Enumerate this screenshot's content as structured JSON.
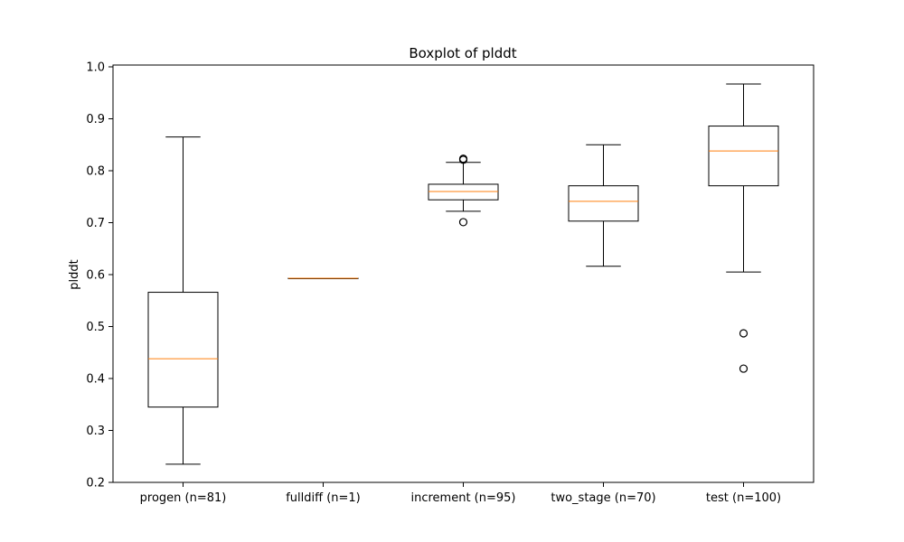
{
  "chart_data": {
    "type": "boxplot",
    "title": "Boxplot of plddt",
    "xlabel": "",
    "ylabel": "plddt",
    "ylim": [
      0.2,
      1.0
    ],
    "yticks": [
      "0.2",
      "0.3",
      "0.4",
      "0.5",
      "0.6",
      "0.7",
      "0.8",
      "0.9",
      "1.0"
    ],
    "grid": false,
    "legend": "none",
    "colors": {
      "box": "#000000",
      "median": "#ff7f0e"
    },
    "categories": [
      "progen (n=81)",
      "fulldiff (n=1)",
      "increment (n=95)",
      "two_stage (n=70)",
      "test (n=100)"
    ],
    "boxes": [
      {
        "whisker_low": 0.235,
        "q1": 0.345,
        "median": 0.438,
        "q3": 0.566,
        "whisker_high": 0.865,
        "outliers": []
      },
      {
        "whisker_low": 0.593,
        "q1": 0.593,
        "median": 0.593,
        "q3": 0.593,
        "whisker_high": 0.593,
        "outliers": []
      },
      {
        "whisker_low": 0.722,
        "q1": 0.744,
        "median": 0.76,
        "q3": 0.774,
        "whisker_high": 0.816,
        "outliers": [
          0.823,
          0.821,
          0.701
        ]
      },
      {
        "whisker_low": 0.616,
        "q1": 0.703,
        "median": 0.741,
        "q3": 0.771,
        "whisker_high": 0.85,
        "outliers": []
      },
      {
        "whisker_low": 0.605,
        "q1": 0.771,
        "median": 0.838,
        "q3": 0.886,
        "whisker_high": 0.967,
        "outliers": [
          0.487,
          0.419
        ]
      }
    ]
  }
}
